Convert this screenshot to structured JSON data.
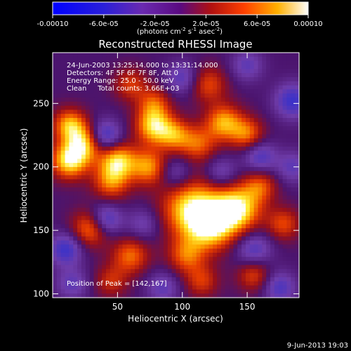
{
  "chart_data": {
    "type": "heatmap",
    "title": "Reconstructed RHESSI Image",
    "xlabel": "Heliocentric X (arcsec)",
    "ylabel": "Heliocentric Y (arcsec)",
    "xlim": [
      0,
      190
    ],
    "ylim": [
      97,
      290
    ],
    "x_ticks": [
      50,
      100,
      150
    ],
    "y_ticks": [
      100,
      150,
      200,
      250
    ],
    "colorbar": {
      "ticks": [
        "-0.00010",
        "-6.0e-05",
        "-2.0e-05",
        "2.0e-05",
        "6.0e-05",
        "0.00010"
      ],
      "range": [
        -0.0001,
        0.0001
      ],
      "label_parts": [
        "(photons cm",
        "-2",
        " s",
        "-1",
        " asec",
        "-2",
        ")"
      ]
    },
    "info_lines": [
      "24-Jun-2003 13:25:14.000 to 13:31:14.000",
      "Detectors: 4F 5F 6F 7F 8F, Att 0",
      "Energy Range: 25.0 - 50.0 keV",
      "Clean     Total counts: 3.66E+03"
    ],
    "peak_label": "Position of Peak = [142,167]",
    "peak": [
      142,
      167
    ],
    "blobs": [
      {
        "x": 142,
        "y": 167,
        "a": 1.0,
        "s": 13
      },
      {
        "x": 108,
        "y": 167,
        "a": 0.95,
        "s": 16
      },
      {
        "x": 122,
        "y": 152,
        "a": 0.75,
        "s": 13
      },
      {
        "x": 13,
        "y": 205,
        "a": 0.95,
        "s": 10
      },
      {
        "x": 13,
        "y": 233,
        "a": 0.75,
        "s": 9
      },
      {
        "x": 25,
        "y": 219,
        "a": 0.8,
        "s": 10
      },
      {
        "x": 50,
        "y": 205,
        "a": 0.85,
        "s": 10
      },
      {
        "x": 45,
        "y": 188,
        "a": 0.6,
        "s": 10
      },
      {
        "x": 30,
        "y": 152,
        "a": 0.75,
        "s": 10
      },
      {
        "x": 74,
        "y": 200,
        "a": 0.7,
        "s": 10
      },
      {
        "x": 60,
        "y": 130,
        "a": 0.6,
        "s": 10
      },
      {
        "x": 103,
        "y": 130,
        "a": 0.55,
        "s": 10
      },
      {
        "x": 78,
        "y": 232,
        "a": 0.85,
        "s": 10
      },
      {
        "x": 94,
        "y": 225,
        "a": 0.6,
        "s": 9
      },
      {
        "x": 112,
        "y": 218,
        "a": 0.55,
        "s": 10
      },
      {
        "x": 132,
        "y": 235,
        "a": 0.75,
        "s": 10
      },
      {
        "x": 150,
        "y": 226,
        "a": 0.6,
        "s": 9
      },
      {
        "x": 78,
        "y": 250,
        "a": 0.5,
        "s": 9
      },
      {
        "x": 120,
        "y": 265,
        "a": 0.5,
        "s": 10
      },
      {
        "x": 60,
        "y": 265,
        "a": 0.45,
        "s": 9
      },
      {
        "x": 155,
        "y": 115,
        "a": 0.5,
        "s": 9
      },
      {
        "x": 178,
        "y": 155,
        "a": 0.5,
        "s": 9
      },
      {
        "x": 115,
        "y": 110,
        "a": 0.45,
        "s": 9
      },
      {
        "x": 45,
        "y": 110,
        "a": 0.4,
        "s": 9
      },
      {
        "x": 160,
        "y": 185,
        "a": 0.5,
        "s": 9
      },
      {
        "x": 40,
        "y": 224,
        "a": -0.7,
        "s": 9
      },
      {
        "x": 40,
        "y": 158,
        "a": -0.7,
        "s": 9
      },
      {
        "x": 10,
        "y": 135,
        "a": -0.6,
        "s": 9
      },
      {
        "x": 155,
        "y": 135,
        "a": -0.5,
        "s": 10
      },
      {
        "x": 185,
        "y": 252,
        "a": -0.6,
        "s": 10
      },
      {
        "x": 160,
        "y": 208,
        "a": -0.5,
        "s": 9
      },
      {
        "x": 95,
        "y": 195,
        "a": -0.4,
        "s": 9
      },
      {
        "x": 100,
        "y": 270,
        "a": -0.45,
        "s": 9
      },
      {
        "x": 175,
        "y": 105,
        "a": -0.5,
        "s": 9
      },
      {
        "x": 85,
        "y": 105,
        "a": -0.4,
        "s": 9
      },
      {
        "x": 130,
        "y": 195,
        "a": -0.4,
        "s": 9
      },
      {
        "x": 15,
        "y": 108,
        "a": -0.4,
        "s": 9
      },
      {
        "x": 70,
        "y": 155,
        "a": -0.35,
        "s": 9
      },
      {
        "x": 185,
        "y": 200,
        "a": -0.4,
        "s": 9
      },
      {
        "x": 150,
        "y": 280,
        "a": -0.4,
        "s": 9
      }
    ]
  },
  "footer": {
    "date": "9-Jun-2013 19:03"
  }
}
